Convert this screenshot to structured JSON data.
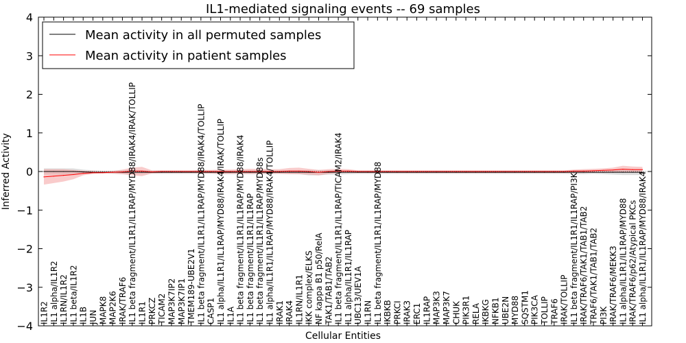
{
  "chart_data": {
    "type": "line",
    "title": "IL1-mediated signaling events -- 69 samples",
    "xlabel": "Cellular Entities",
    "ylabel": "Inferred Activity",
    "ylim": [
      -4,
      4
    ],
    "yticks": [
      -4,
      -3,
      -2,
      -1,
      0,
      1,
      2,
      3,
      4
    ],
    "ytick_labels": [
      "−4",
      "−3",
      "−2",
      "−1",
      "0",
      "1",
      "2",
      "3",
      "4"
    ],
    "grid": false,
    "legend_position": "top-left",
    "categories": [
      "IL1R2",
      "IL1 alpha/IL1R2",
      "IL1RN/IL1R2",
      "IL1 beta/IL1R2",
      "IL1B",
      "JUN",
      "MAPK8",
      "MAP2K6",
      "IRAK/TRAF6",
      "IL1 beta fragment/IL1R1/IL1RAP/MYD88/IRAK4/IRAK/TOLLIP",
      "IL1R1",
      "PRKCZ",
      "TICAM2",
      "MAP3K7IP2",
      "MAP3K7IP1",
      "TMEM189-UBE2V1",
      "IL1 beta fragment/IL1R1/IL1RAP/MYD88/IRAK4/TOLLIP",
      "CASP1",
      "IL1 alpha/IL1R1/IL1RAP/MYD88/IRAK4/IRAK/TOLLIP",
      "IL1A",
      "IL1 beta fragment/IL1R1/IL1RAP/MYD88/IRAK4",
      "IL1 beta fragment/IL1R1/IL1RAP",
      "IL1 beta fragment/IL1R1/IL1RAP/MYD88s",
      "IL1 alpha/IL1R1/IL1RAP/MYD88/IRAK4/TOLLIP",
      "IRAK1",
      "IRAK4",
      "IL1RN/IL1R1",
      "IKK complex/ELKS",
      "NF kappa B1 p50/RelA",
      "TAK1/TAB1/TAB2",
      "IL1 beta fragment/IL1R1/IL1RAP/TICAM2/IRAK4",
      "IL1 alpha/IL1R1/IL1RAP",
      "UBC13/UEV1A",
      "IL1RN",
      "IL1 beta fragment/IL1R1/IL1RAP/MYD88",
      "IKBKB",
      "PRKCI",
      "IRAK3",
      "ERC1",
      "IL1RAP",
      "MAP3K3",
      "MAP3K7",
      "CHUK",
      "PIK3R1",
      "RELA",
      "IKBKG",
      "NFKB1",
      "UBE2N",
      "MYD88",
      "SQSTM1",
      "PIK3CA",
      "TOLLIP",
      "TRAF6",
      "IRAK/TOLLIP",
      "IL1 beta fragment/IL1R1/IL1RAP/PI3K",
      "IRAK/TRAF6/TAK1/TAB1/TAB2",
      "TRAF6/TAK1/TAB1/TAB2",
      "PI3K",
      "IRAK/TRAF6/MEKK3",
      "IL1 alpha/IL1R1/IL1RAP/MYD88",
      "IRAK/TRAF6/p62/Atypical PKCs",
      "IL1 alpha/IL1R1/IL1RAP/MYD88/IRAK4"
    ],
    "series": [
      {
        "name": "Mean activity in all permuted samples",
        "color": "#000000",
        "band_color": "#c8c8c8",
        "values": [
          0.0,
          0.0,
          0.0,
          0.0,
          -0.01,
          -0.02,
          -0.02,
          -0.02,
          -0.02,
          -0.02,
          -0.02,
          -0.02,
          -0.02,
          -0.02,
          -0.02,
          -0.02,
          -0.02,
          -0.02,
          -0.02,
          -0.02,
          -0.02,
          -0.02,
          -0.02,
          -0.02,
          -0.02,
          -0.02,
          -0.02,
          -0.02,
          -0.02,
          -0.02,
          -0.02,
          -0.02,
          -0.02,
          -0.02,
          -0.02,
          -0.02,
          -0.02,
          -0.02,
          -0.02,
          -0.02,
          -0.02,
          -0.02,
          -0.02,
          -0.02,
          -0.02,
          -0.02,
          -0.02,
          -0.02,
          -0.02,
          -0.02,
          -0.02,
          -0.02,
          -0.02,
          -0.02,
          -0.02,
          -0.02,
          -0.02,
          -0.02,
          -0.02,
          -0.02,
          -0.02,
          -0.02
        ],
        "band_low": [
          -0.08,
          -0.08,
          -0.08,
          -0.08,
          -0.07,
          -0.06,
          -0.05,
          -0.06,
          -0.07,
          -0.07,
          -0.07,
          -0.06,
          -0.06,
          -0.06,
          -0.06,
          -0.06,
          -0.06,
          -0.06,
          -0.07,
          -0.07,
          -0.07,
          -0.07,
          -0.07,
          -0.07,
          -0.06,
          -0.06,
          -0.07,
          -0.1,
          -0.1,
          -0.08,
          -0.08,
          -0.07,
          -0.06,
          -0.06,
          -0.06,
          -0.06,
          -0.06,
          -0.06,
          -0.06,
          -0.06,
          -0.06,
          -0.06,
          -0.06,
          -0.06,
          -0.06,
          -0.06,
          -0.06,
          -0.06,
          -0.06,
          -0.06,
          -0.06,
          -0.06,
          -0.06,
          -0.06,
          -0.07,
          -0.07,
          -0.06,
          -0.07,
          -0.08,
          -0.09,
          -0.09,
          -0.09
        ],
        "band_high": [
          0.08,
          0.08,
          0.08,
          0.08,
          0.05,
          0.03,
          0.02,
          0.02,
          0.03,
          0.04,
          0.03,
          0.02,
          0.02,
          0.02,
          0.02,
          0.02,
          0.03,
          0.03,
          0.03,
          0.03,
          0.03,
          0.03,
          0.03,
          0.03,
          0.03,
          0.03,
          0.03,
          0.04,
          0.04,
          0.03,
          0.03,
          0.03,
          0.02,
          0.02,
          0.02,
          0.02,
          0.02,
          0.02,
          0.02,
          0.02,
          0.02,
          0.02,
          0.02,
          0.02,
          0.02,
          0.02,
          0.02,
          0.02,
          0.02,
          0.02,
          0.02,
          0.02,
          0.02,
          0.02,
          0.03,
          0.03,
          0.02,
          0.03,
          0.04,
          0.05,
          0.05,
          0.05
        ]
      },
      {
        "name": "Mean activity in patient samples",
        "color": "#ff0000",
        "band_color": "#f4a0a0",
        "values": [
          -0.14,
          -0.12,
          -0.1,
          -0.08,
          -0.05,
          -0.03,
          -0.03,
          -0.02,
          -0.01,
          0.01,
          0.01,
          -0.01,
          0.0,
          0.0,
          0.0,
          0.0,
          0.0,
          0.0,
          0.0,
          0.0,
          0.0,
          0.0,
          0.0,
          0.0,
          0.0,
          0.01,
          0.01,
          0.0,
          -0.02,
          0.0,
          0.01,
          0.01,
          0.0,
          0.0,
          0.0,
          0.0,
          0.0,
          0.0,
          0.0,
          0.0,
          0.0,
          0.0,
          0.0,
          0.0,
          0.0,
          0.0,
          0.0,
          0.0,
          0.0,
          0.0,
          0.0,
          0.0,
          0.0,
          0.0,
          0.01,
          0.01,
          0.02,
          0.03,
          0.04,
          0.06,
          0.05,
          0.05
        ],
        "band_low": [
          -0.34,
          -0.3,
          -0.26,
          -0.2,
          -0.1,
          -0.06,
          -0.05,
          -0.05,
          -0.07,
          -0.1,
          -0.12,
          -0.05,
          -0.04,
          -0.04,
          -0.04,
          -0.04,
          -0.05,
          -0.05,
          -0.06,
          -0.06,
          -0.06,
          -0.06,
          -0.06,
          -0.05,
          -0.06,
          -0.07,
          -0.07,
          -0.08,
          -0.1,
          -0.06,
          -0.04,
          -0.04,
          -0.04,
          -0.04,
          -0.04,
          -0.04,
          -0.04,
          -0.04,
          -0.04,
          -0.04,
          -0.04,
          -0.04,
          -0.04,
          -0.04,
          -0.04,
          -0.04,
          -0.04,
          -0.04,
          -0.04,
          -0.04,
          -0.04,
          -0.04,
          -0.04,
          -0.04,
          -0.04,
          -0.04,
          -0.03,
          -0.02,
          -0.02,
          -0.02,
          -0.02,
          -0.02
        ],
        "band_high": [
          0.06,
          0.06,
          0.06,
          0.04,
          0.02,
          0.01,
          0.0,
          0.01,
          0.05,
          0.1,
          0.12,
          0.03,
          0.03,
          0.03,
          0.03,
          0.03,
          0.04,
          0.04,
          0.05,
          0.05,
          0.06,
          0.07,
          0.07,
          0.06,
          0.06,
          0.09,
          0.1,
          0.07,
          0.04,
          0.06,
          0.07,
          0.06,
          0.03,
          0.03,
          0.03,
          0.03,
          0.03,
          0.03,
          0.03,
          0.03,
          0.03,
          0.03,
          0.03,
          0.03,
          0.03,
          0.03,
          0.03,
          0.03,
          0.03,
          0.03,
          0.03,
          0.03,
          0.03,
          0.03,
          0.05,
          0.06,
          0.07,
          0.08,
          0.1,
          0.15,
          0.13,
          0.12
        ]
      }
    ]
  }
}
